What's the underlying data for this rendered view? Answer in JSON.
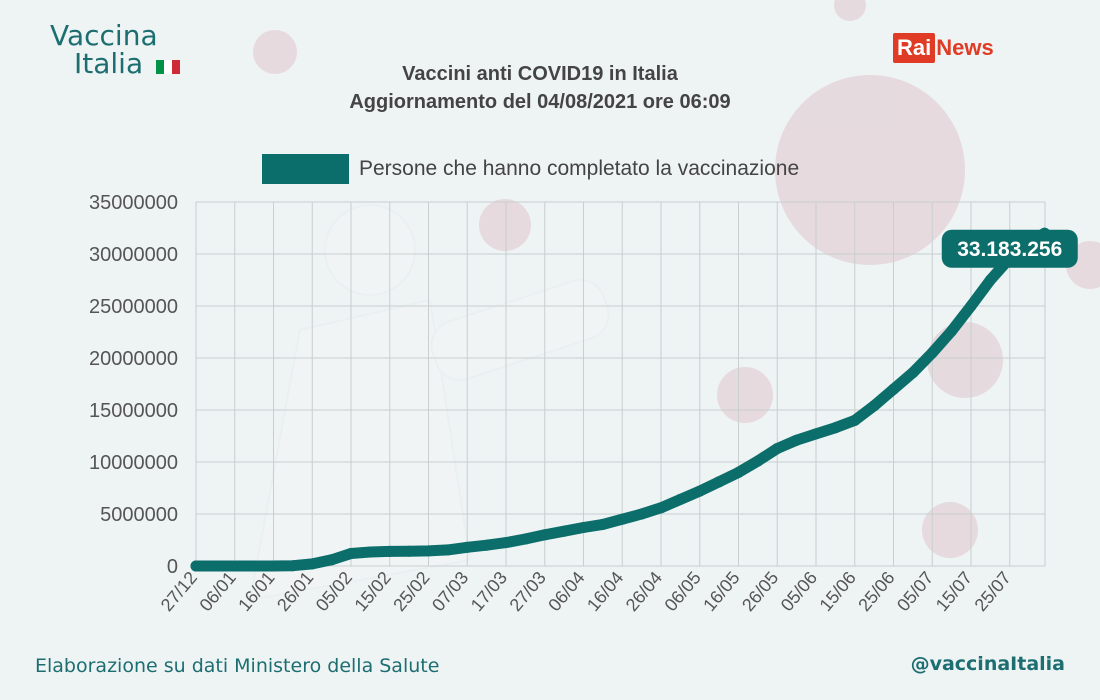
{
  "brand": {
    "logo_line1": "Vaccina",
    "logo_line2": "Italia",
    "flag_colors": [
      "#009246",
      "#ffffff",
      "#ce2b37"
    ],
    "rai_part": "Rai",
    "news_part": "News",
    "rai_color": "#e03b24"
  },
  "chart_data": {
    "type": "line",
    "title": "Vaccini anti COVID19 in Italia",
    "subtitle": "Aggiornamento del 04/08/2021 ore 06:09",
    "xlabel": "",
    "ylabel": "",
    "ylim": [
      0,
      35000000
    ],
    "yticks": [
      0,
      5000000,
      10000000,
      15000000,
      20000000,
      25000000,
      30000000,
      35000000
    ],
    "x_tick_labels": [
      "27/12",
      "06/01",
      "16/01",
      "26/01",
      "05/02",
      "15/02",
      "25/02",
      "07/03",
      "17/03",
      "27/03",
      "06/04",
      "16/04",
      "26/04",
      "06/05",
      "16/05",
      "26/05",
      "05/06",
      "15/06",
      "25/06",
      "05/07",
      "15/07",
      "25/07"
    ],
    "grid": true,
    "legend_position": "top-center",
    "series": [
      {
        "name": "Persone che hanno completato la vaccinazione",
        "color": "#0c6e6b",
        "points": [
          [
            "27/12",
            0
          ],
          [
            "06/01",
            0
          ],
          [
            "16/01",
            0
          ],
          [
            "21/01",
            30000
          ],
          [
            "26/01",
            200000
          ],
          [
            "31/01",
            600000
          ],
          [
            "05/02",
            1200000
          ],
          [
            "10/02",
            1350000
          ],
          [
            "15/02",
            1400000
          ],
          [
            "20/02",
            1420000
          ],
          [
            "25/02",
            1450000
          ],
          [
            "02/03",
            1550000
          ],
          [
            "07/03",
            1800000
          ],
          [
            "12/03",
            2000000
          ],
          [
            "17/03",
            2250000
          ],
          [
            "22/03",
            2600000
          ],
          [
            "27/03",
            3000000
          ],
          [
            "01/04",
            3350000
          ],
          [
            "06/04",
            3700000
          ],
          [
            "11/04",
            4000000
          ],
          [
            "16/04",
            4500000
          ],
          [
            "21/04",
            5000000
          ],
          [
            "26/04",
            5600000
          ],
          [
            "01/05",
            6400000
          ],
          [
            "06/05",
            7200000
          ],
          [
            "11/05",
            8100000
          ],
          [
            "16/05",
            9000000
          ],
          [
            "21/05",
            10100000
          ],
          [
            "26/05",
            11300000
          ],
          [
            "31/05",
            12100000
          ],
          [
            "05/06",
            12700000
          ],
          [
            "10/06",
            13300000
          ],
          [
            "15/06",
            14000000
          ],
          [
            "20/06",
            15400000
          ],
          [
            "25/06",
            17000000
          ],
          [
            "30/06",
            18600000
          ],
          [
            "05/07",
            20500000
          ],
          [
            "10/07",
            22600000
          ],
          [
            "15/07",
            25000000
          ],
          [
            "20/07",
            27500000
          ],
          [
            "25/07",
            29600000
          ],
          [
            "30/07",
            31100000
          ],
          [
            "03/08",
            32000000
          ]
        ]
      }
    ],
    "annotation": {
      "text": "33.183.256",
      "at_date": "25/07",
      "y": 30500000
    }
  },
  "footer": {
    "source": "Elaborazione su dati Ministero della Salute",
    "handle": "@vaccinaItalia"
  }
}
